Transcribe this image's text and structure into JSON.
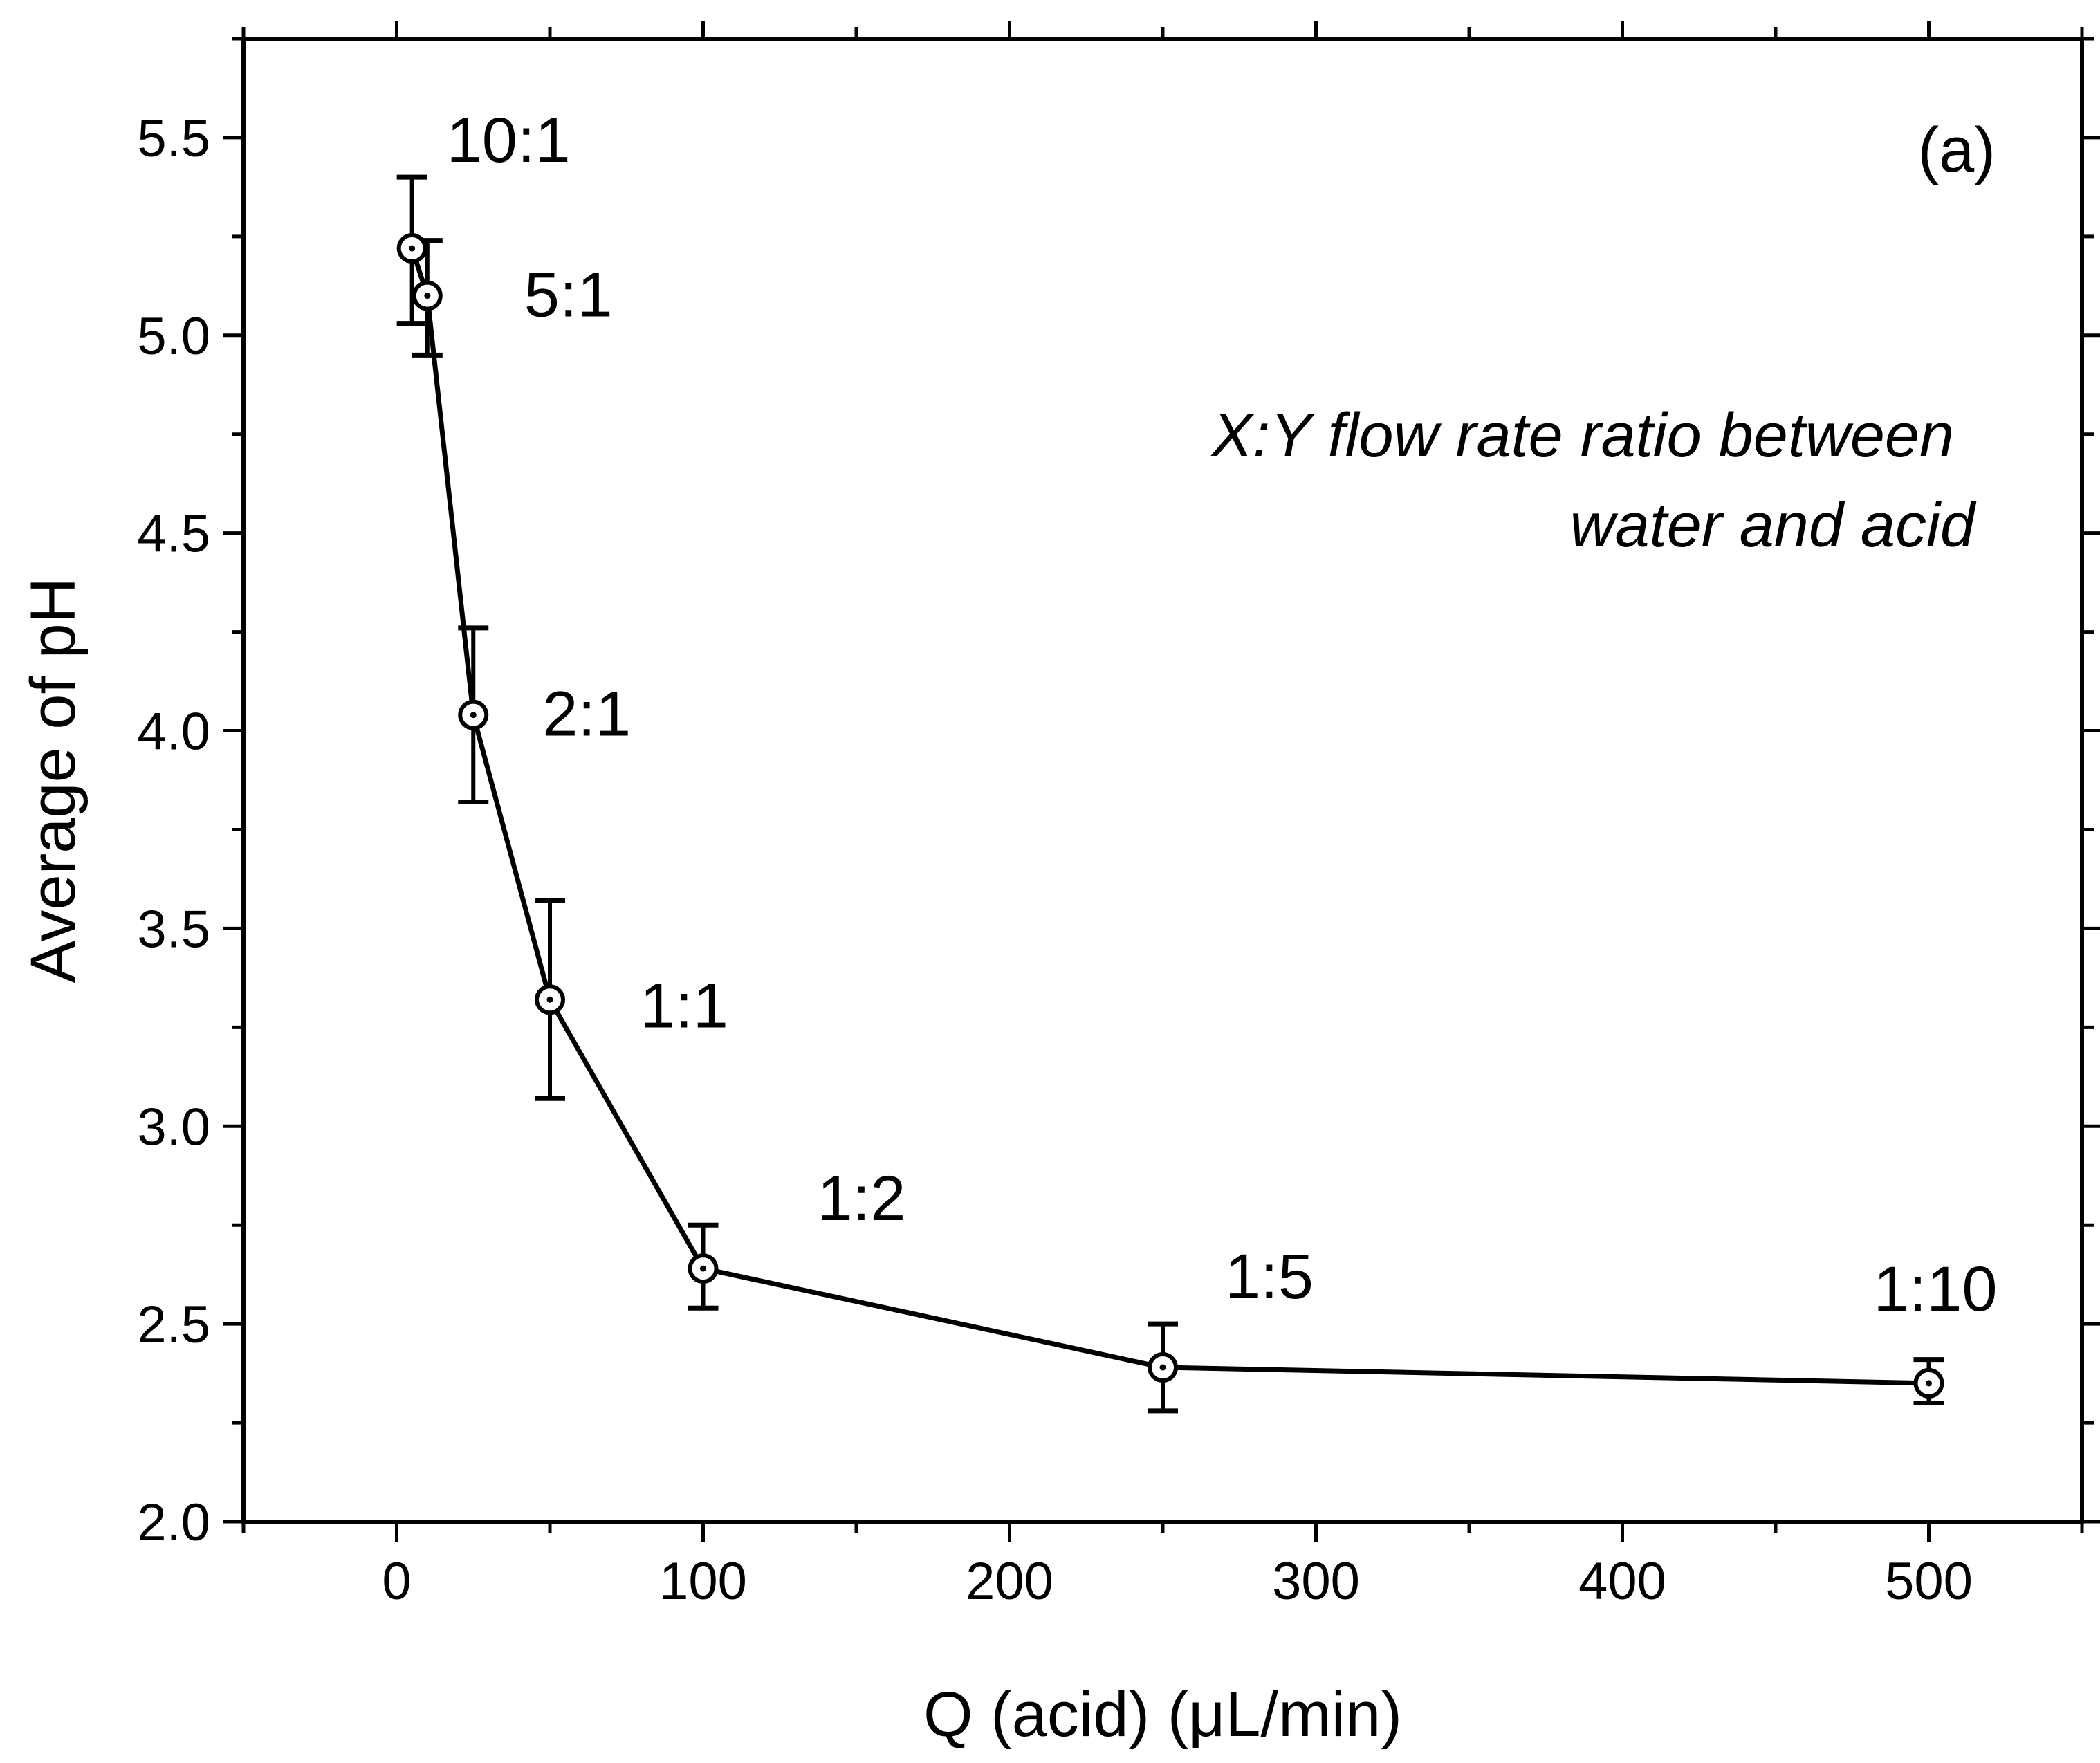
{
  "chart_data": {
    "type": "line",
    "panel_label": "(a)",
    "xlabel": "Q (acid) (μL/min)",
    "ylabel": "Average of pH",
    "xlim": [
      -50,
      550
    ],
    "ylim": [
      2.0,
      5.75
    ],
    "x_ticks": [
      0,
      100,
      200,
      300,
      400,
      500
    ],
    "x_tick_labels": [
      "0",
      "100",
      "200",
      "300",
      "400",
      "500"
    ],
    "x_minor_ticks": [
      -50,
      50,
      150,
      250,
      350,
      450,
      550
    ],
    "y_ticks": [
      2.0,
      2.5,
      3.0,
      3.5,
      4.0,
      4.5,
      5.0,
      5.5
    ],
    "y_tick_labels": [
      "2.0",
      "2.5",
      "3.0",
      "3.5",
      "4.0",
      "4.5",
      "5.0",
      "5.5"
    ],
    "y_minor_ticks": [
      2.25,
      2.75,
      3.25,
      3.75,
      4.25,
      4.75,
      5.25,
      5.75
    ],
    "annotation": {
      "line1": "X:Y flow rate ratio between",
      "line2": "water and acid",
      "position": "upper-right"
    },
    "series": [
      {
        "name": "Average of pH",
        "x": [
          5,
          10,
          25,
          50,
          100,
          250,
          500
        ],
        "y": [
          5.22,
          5.1,
          4.04,
          3.32,
          2.64,
          2.39,
          2.35
        ],
        "err_low": [
          5.03,
          4.95,
          3.82,
          3.07,
          2.54,
          2.28,
          2.3
        ],
        "err_high": [
          5.4,
          5.24,
          4.26,
          3.57,
          2.75,
          2.5,
          2.41
        ],
        "labels": [
          "10:1",
          "5:1",
          "2:1",
          "1:1",
          "1:2",
          "1:5",
          "1:10"
        ],
        "marker": "circle-dot",
        "color": "#000000"
      }
    ]
  }
}
